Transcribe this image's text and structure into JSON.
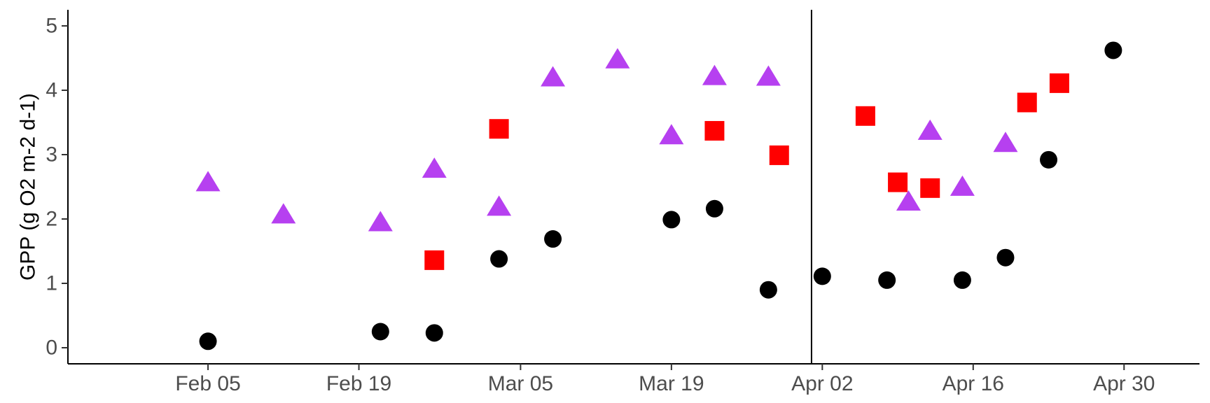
{
  "chart_data": {
    "type": "scatter",
    "title": "",
    "xlabel": "",
    "ylabel": "GPP (g O2 m-2 d-1)",
    "x_domain": [
      "2020-01-23",
      "2020-05-07"
    ],
    "ylim": [
      -0.25,
      5.25
    ],
    "x_ticks": [
      {
        "date": "2020-02-05",
        "label": "Feb 05"
      },
      {
        "date": "2020-02-19",
        "label": "Feb 19"
      },
      {
        "date": "2020-03-05",
        "label": "Mar 05"
      },
      {
        "date": "2020-03-19",
        "label": "Mar 19"
      },
      {
        "date": "2020-04-02",
        "label": "Apr 02"
      },
      {
        "date": "2020-04-16",
        "label": "Apr 16"
      },
      {
        "date": "2020-04-30",
        "label": "Apr 30"
      }
    ],
    "y_ticks": [
      {
        "value": 0,
        "label": "0"
      },
      {
        "value": 1,
        "label": "1"
      },
      {
        "value": 2,
        "label": "2"
      },
      {
        "value": 3,
        "label": "3"
      },
      {
        "value": 4,
        "label": "4"
      },
      {
        "value": 5,
        "label": "5"
      }
    ],
    "vline": {
      "date": "2020-04-01",
      "color": "#000000"
    },
    "grid": false,
    "legend": "none",
    "series": [
      {
        "name": "black circles",
        "shape": "circle",
        "color": "#000000",
        "points": [
          {
            "date": "2020-02-05",
            "y": 0.1
          },
          {
            "date": "2020-02-21",
            "y": 0.25
          },
          {
            "date": "2020-02-26",
            "y": 0.23
          },
          {
            "date": "2020-03-03",
            "y": 1.38
          },
          {
            "date": "2020-03-08",
            "y": 1.69
          },
          {
            "date": "2020-03-19",
            "y": 1.99
          },
          {
            "date": "2020-03-23",
            "y": 2.16
          },
          {
            "date": "2020-03-28",
            "y": 0.9
          },
          {
            "date": "2020-04-02",
            "y": 1.11
          },
          {
            "date": "2020-04-08",
            "y": 1.05
          },
          {
            "date": "2020-04-15",
            "y": 1.05
          },
          {
            "date": "2020-04-19",
            "y": 1.4
          },
          {
            "date": "2020-04-23",
            "y": 2.92
          },
          {
            "date": "2020-04-29",
            "y": 4.62
          }
        ]
      },
      {
        "name": "purple triangles",
        "shape": "triangle",
        "color": "#b640f0",
        "points": [
          {
            "date": "2020-02-05",
            "y": 2.55
          },
          {
            "date": "2020-02-12",
            "y": 2.05
          },
          {
            "date": "2020-02-21",
            "y": 1.93
          },
          {
            "date": "2020-02-26",
            "y": 2.76
          },
          {
            "date": "2020-03-03",
            "y": 2.17
          },
          {
            "date": "2020-03-08",
            "y": 4.18
          },
          {
            "date": "2020-03-14",
            "y": 4.46
          },
          {
            "date": "2020-03-19",
            "y": 3.28
          },
          {
            "date": "2020-03-23",
            "y": 4.2
          },
          {
            "date": "2020-03-28",
            "y": 4.19
          },
          {
            "date": "2020-04-10",
            "y": 2.25
          },
          {
            "date": "2020-04-12",
            "y": 3.35
          },
          {
            "date": "2020-04-15",
            "y": 2.48
          },
          {
            "date": "2020-04-19",
            "y": 3.16
          }
        ]
      },
      {
        "name": "red squares",
        "shape": "square",
        "color": "#ff0000",
        "points": [
          {
            "date": "2020-02-26",
            "y": 1.36
          },
          {
            "date": "2020-03-03",
            "y": 3.4
          },
          {
            "date": "2020-03-23",
            "y": 3.37
          },
          {
            "date": "2020-03-29",
            "y": 2.99
          },
          {
            "date": "2020-04-06",
            "y": 3.6
          },
          {
            "date": "2020-04-09",
            "y": 2.57
          },
          {
            "date": "2020-04-12",
            "y": 2.48
          },
          {
            "date": "2020-04-21",
            "y": 3.81
          },
          {
            "date": "2020-04-24",
            "y": 4.11
          }
        ]
      }
    ]
  }
}
